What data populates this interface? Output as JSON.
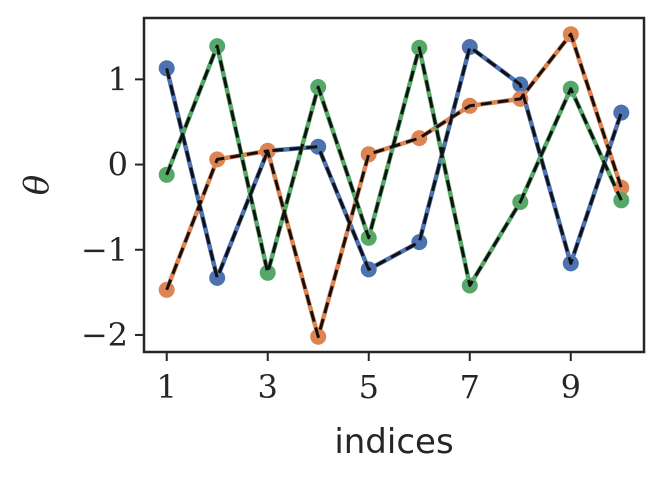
{
  "chart_data": {
    "type": "scatter",
    "xlabel": "indices",
    "ylabel": "θ",
    "xlim": [
      0.55,
      10.45
    ],
    "ylim": [
      -2.2,
      1.72
    ],
    "xticks": [
      1,
      3,
      5,
      7,
      9
    ],
    "yticks": [
      {
        "value": 1,
        "label": "1"
      },
      {
        "value": 0,
        "label": "0"
      },
      {
        "value": -1,
        "label": "−1"
      },
      {
        "value": -2,
        "label": "−2"
      }
    ],
    "grid": false,
    "x": [
      1,
      2,
      3,
      4,
      5,
      6,
      7,
      8,
      9,
      10
    ],
    "series": [
      {
        "color": "#4c72b0",
        "values": [
          1.13,
          -1.33,
          0.16,
          0.21,
          -1.23,
          -0.91,
          1.38,
          0.94,
          -1.16,
          0.61
        ]
      },
      {
        "color": "#dd8452",
        "values": [
          -1.47,
          0.06,
          0.16,
          -2.02,
          0.12,
          0.31,
          0.69,
          0.77,
          1.53,
          -0.27
        ]
      },
      {
        "color": "#55a868",
        "values": [
          -0.12,
          1.39,
          -1.27,
          0.91,
          -0.86,
          1.37,
          -1.42,
          -0.44,
          0.89,
          -0.42
        ]
      }
    ],
    "overlay_line_color": "#111111"
  }
}
